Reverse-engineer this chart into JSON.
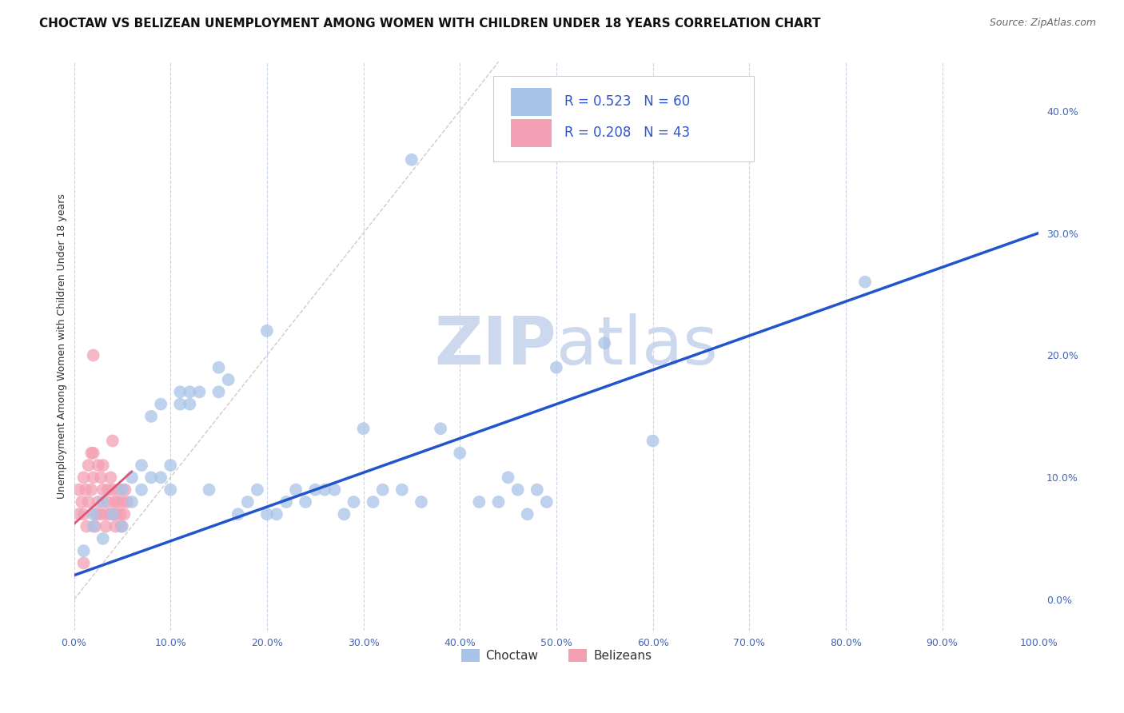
{
  "title": "CHOCTAW VS BELIZEAN UNEMPLOYMENT AMONG WOMEN WITH CHILDREN UNDER 18 YEARS CORRELATION CHART",
  "source": "Source: ZipAtlas.com",
  "ylabel": "Unemployment Among Women with Children Under 18 years",
  "choctaw_R": 0.523,
  "choctaw_N": 60,
  "belizean_R": 0.208,
  "belizean_N": 43,
  "choctaw_color": "#a8c4e8",
  "belizean_color": "#f4a0b4",
  "trend_choctaw_color": "#2255cc",
  "trend_belizean_color": "#dd5577",
  "diagonal_color": "#ccbbbb",
  "watermark_color": "#ccd8ee",
  "background_color": "#ffffff",
  "grid_color": "#c8d4e4",
  "xlim": [
    0.0,
    1.0
  ],
  "ylim": [
    -0.025,
    0.44
  ],
  "xticks": [
    0.0,
    0.1,
    0.2,
    0.3,
    0.4,
    0.5,
    0.6,
    0.7,
    0.8,
    0.9,
    1.0
  ],
  "yticks": [
    0.0,
    0.1,
    0.2,
    0.3,
    0.4
  ],
  "choctaw_x": [
    0.01,
    0.02,
    0.02,
    0.03,
    0.03,
    0.04,
    0.05,
    0.05,
    0.06,
    0.06,
    0.07,
    0.07,
    0.08,
    0.08,
    0.09,
    0.09,
    0.1,
    0.1,
    0.11,
    0.11,
    0.12,
    0.12,
    0.13,
    0.14,
    0.15,
    0.15,
    0.16,
    0.17,
    0.18,
    0.19,
    0.2,
    0.2,
    0.21,
    0.22,
    0.23,
    0.24,
    0.25,
    0.26,
    0.27,
    0.28,
    0.29,
    0.3,
    0.31,
    0.32,
    0.34,
    0.35,
    0.36,
    0.38,
    0.4,
    0.42,
    0.44,
    0.45,
    0.46,
    0.47,
    0.48,
    0.49,
    0.5,
    0.55,
    0.6,
    0.82
  ],
  "choctaw_y": [
    0.04,
    0.06,
    0.07,
    0.05,
    0.08,
    0.07,
    0.09,
    0.06,
    0.08,
    0.1,
    0.09,
    0.11,
    0.1,
    0.15,
    0.1,
    0.16,
    0.09,
    0.11,
    0.16,
    0.17,
    0.16,
    0.17,
    0.17,
    0.09,
    0.17,
    0.19,
    0.18,
    0.07,
    0.08,
    0.09,
    0.22,
    0.07,
    0.07,
    0.08,
    0.09,
    0.08,
    0.09,
    0.09,
    0.09,
    0.07,
    0.08,
    0.14,
    0.08,
    0.09,
    0.09,
    0.36,
    0.08,
    0.14,
    0.12,
    0.08,
    0.08,
    0.1,
    0.09,
    0.07,
    0.09,
    0.08,
    0.19,
    0.21,
    0.13,
    0.26
  ],
  "belizean_x": [
    0.005,
    0.005,
    0.008,
    0.01,
    0.01,
    0.012,
    0.013,
    0.015,
    0.015,
    0.018,
    0.018,
    0.02,
    0.02,
    0.022,
    0.023,
    0.025,
    0.025,
    0.027,
    0.028,
    0.03,
    0.03,
    0.032,
    0.033,
    0.035,
    0.035,
    0.037,
    0.038,
    0.04,
    0.04,
    0.042,
    0.043,
    0.044,
    0.045,
    0.046,
    0.048,
    0.049,
    0.05,
    0.052,
    0.053,
    0.055,
    0.04,
    0.02,
    0.01
  ],
  "belizean_y": [
    0.07,
    0.09,
    0.08,
    0.07,
    0.1,
    0.09,
    0.06,
    0.11,
    0.08,
    0.09,
    0.12,
    0.1,
    0.12,
    0.06,
    0.07,
    0.11,
    0.08,
    0.07,
    0.1,
    0.09,
    0.11,
    0.07,
    0.06,
    0.09,
    0.08,
    0.07,
    0.1,
    0.09,
    0.07,
    0.08,
    0.06,
    0.07,
    0.08,
    0.09,
    0.07,
    0.06,
    0.08,
    0.07,
    0.09,
    0.08,
    0.13,
    0.2,
    0.03
  ],
  "legend_label_choctaw": "Choctaw",
  "legend_label_belizean": "Belizeans",
  "title_fontsize": 11,
  "source_fontsize": 9,
  "axis_label_fontsize": 9,
  "tick_fontsize": 9,
  "legend_fontsize": 12
}
